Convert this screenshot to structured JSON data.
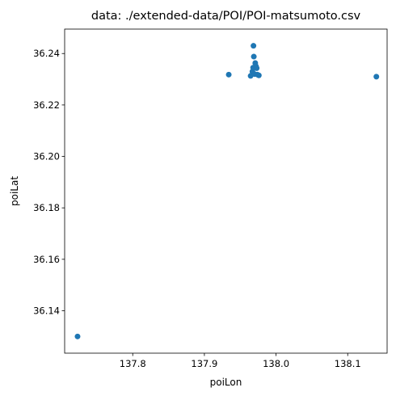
{
  "chart_data": {
    "type": "scatter",
    "title": "data: ./extended-data/POI/POI-matsumoto.csv",
    "xlabel": "poiLon",
    "ylabel": "poiLat",
    "xlim": [
      137.705,
      138.155
    ],
    "ylim": [
      36.1235,
      36.2495
    ],
    "xticks": [
      137.8,
      137.9,
      138.0,
      138.1
    ],
    "xtick_labels": [
      "137.8",
      "137.9",
      "138.0",
      "138.1"
    ],
    "yticks": [
      36.14,
      36.16,
      36.18,
      36.2,
      36.22,
      36.24
    ],
    "ytick_labels": [
      "36.14",
      "36.16",
      "36.18",
      "36.20",
      "36.22",
      "36.24"
    ],
    "grid": false,
    "color": "#1f77b4",
    "points": [
      {
        "x": 137.723,
        "y": 36.13
      },
      {
        "x": 137.934,
        "y": 36.2318
      },
      {
        "x": 137.9645,
        "y": 36.2313
      },
      {
        "x": 137.967,
        "y": 36.233
      },
      {
        "x": 137.968,
        "y": 36.2345
      },
      {
        "x": 137.9685,
        "y": 36.243
      },
      {
        "x": 137.969,
        "y": 36.2388
      },
      {
        "x": 137.97,
        "y": 36.232
      },
      {
        "x": 137.971,
        "y": 36.2363
      },
      {
        "x": 137.972,
        "y": 36.235
      },
      {
        "x": 137.973,
        "y": 36.2343
      },
      {
        "x": 137.974,
        "y": 36.2318
      },
      {
        "x": 137.976,
        "y": 36.2315
      },
      {
        "x": 138.14,
        "y": 36.231
      }
    ]
  }
}
